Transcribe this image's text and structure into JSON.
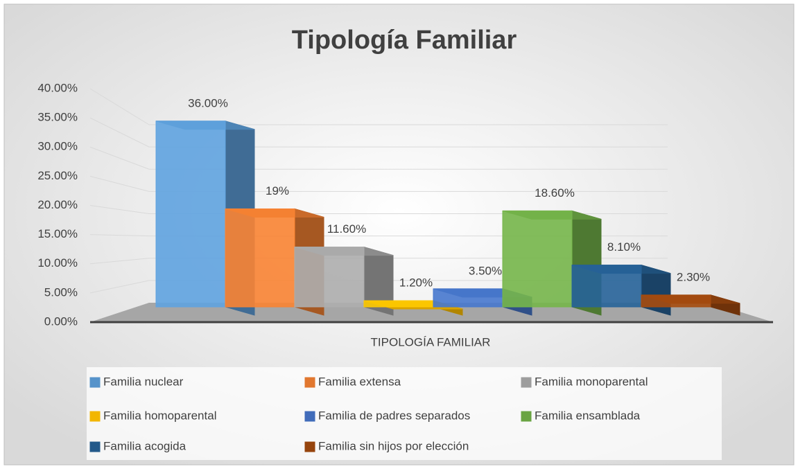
{
  "chart_data": {
    "type": "bar3d",
    "title": "Tipología Familiar",
    "x_label": "TIPOLOGÍA FAMILIAR",
    "categories": [
      "TIPOLOGÍA FAMILIAR"
    ],
    "series": [
      {
        "name": "Familia nuclear",
        "color": "#5b9bd5",
        "values": [
          36
        ],
        "value_labels": [
          "36.00%"
        ]
      },
      {
        "name": "Familia extensa",
        "color": "#ed7d31",
        "values": [
          19
        ],
        "value_labels": [
          "19%"
        ]
      },
      {
        "name": "Familia monoparental",
        "color": "#a5a5a5",
        "values": [
          11.6
        ],
        "value_labels": [
          "11.60%"
        ]
      },
      {
        "name": "Familia homoparental",
        "color": "#ffc000",
        "values": [
          1.2
        ],
        "value_labels": [
          "1.20%"
        ]
      },
      {
        "name": "Familia de padres separados",
        "color": "#4472c4",
        "values": [
          3.5
        ],
        "value_labels": [
          "3.50%"
        ]
      },
      {
        "name": "Familia ensamblada",
        "color": "#70ad47",
        "values": [
          18.6
        ],
        "value_labels": [
          "18.60%"
        ]
      },
      {
        "name": "Familia acogida",
        "color": "#255e91",
        "values": [
          8.1
        ],
        "value_labels": [
          "8.10%"
        ]
      },
      {
        "name": "Familia sin hijos por elección",
        "color": "#9e480e",
        "values": [
          2.3
        ],
        "value_labels": [
          "2.30%"
        ]
      }
    ],
    "ylim": [
      0,
      40
    ],
    "yticks": [
      {
        "value": 0,
        "label": "0.00%"
      },
      {
        "value": 5,
        "label": "5.00%"
      },
      {
        "value": 10,
        "label": "10.00%"
      },
      {
        "value": 15,
        "label": "15.00%"
      },
      {
        "value": 20,
        "label": "20.00%"
      },
      {
        "value": 25,
        "label": "25.00%"
      },
      {
        "value": 30,
        "label": "30.00%"
      },
      {
        "value": 35,
        "label": "35.00%"
      },
      {
        "value": 40,
        "label": "40.00%"
      }
    ],
    "grid": true,
    "legend": "bottom"
  }
}
